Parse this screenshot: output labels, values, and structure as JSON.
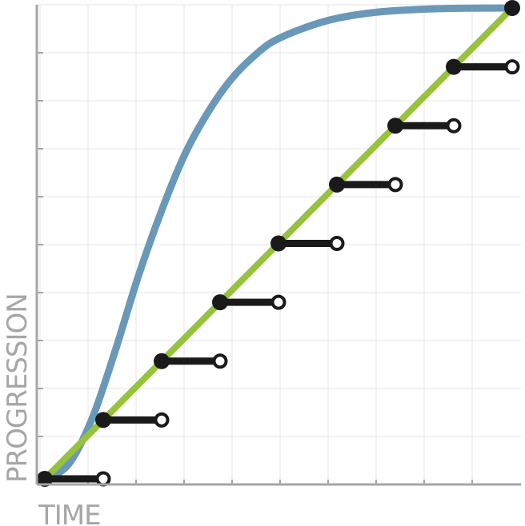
{
  "chart_data": {
    "type": "line",
    "title": "",
    "xlabel": "TIME",
    "ylabel": "PROGRESSION",
    "xlim": [
      0,
      10
    ],
    "ylim": [
      0,
      10
    ],
    "grid": true,
    "legend": "none",
    "series": [
      {
        "kind": "smooth-curve",
        "color": "#6a98b8",
        "points": [
          [
            0,
            0
          ],
          [
            0.5,
            0.3
          ],
          [
            1,
            1.25
          ],
          [
            1.5,
            2.7
          ],
          [
            2,
            4.3
          ],
          [
            2.5,
            5.7
          ],
          [
            3,
            6.9
          ],
          [
            3.5,
            7.8
          ],
          [
            4,
            8.5
          ],
          [
            4.5,
            9.0
          ],
          [
            5,
            9.35
          ],
          [
            6,
            9.72
          ],
          [
            7,
            9.9
          ],
          [
            8,
            9.97
          ],
          [
            9,
            9.995
          ],
          [
            10,
            10
          ]
        ]
      },
      {
        "kind": "linear",
        "color": "#97c23c",
        "points": [
          [
            0,
            0
          ],
          [
            10,
            10
          ]
        ]
      },
      {
        "kind": "step",
        "color": "#1a1a1a",
        "points": [
          [
            0,
            0
          ],
          [
            1.25,
            1.25
          ],
          [
            2.5,
            2.5
          ],
          [
            3.75,
            3.75
          ],
          [
            5,
            5
          ],
          [
            6.25,
            6.25
          ],
          [
            7.5,
            7.5
          ],
          [
            8.75,
            8.75
          ],
          [
            10,
            10
          ]
        ],
        "step_length": 1.25
      }
    ]
  }
}
